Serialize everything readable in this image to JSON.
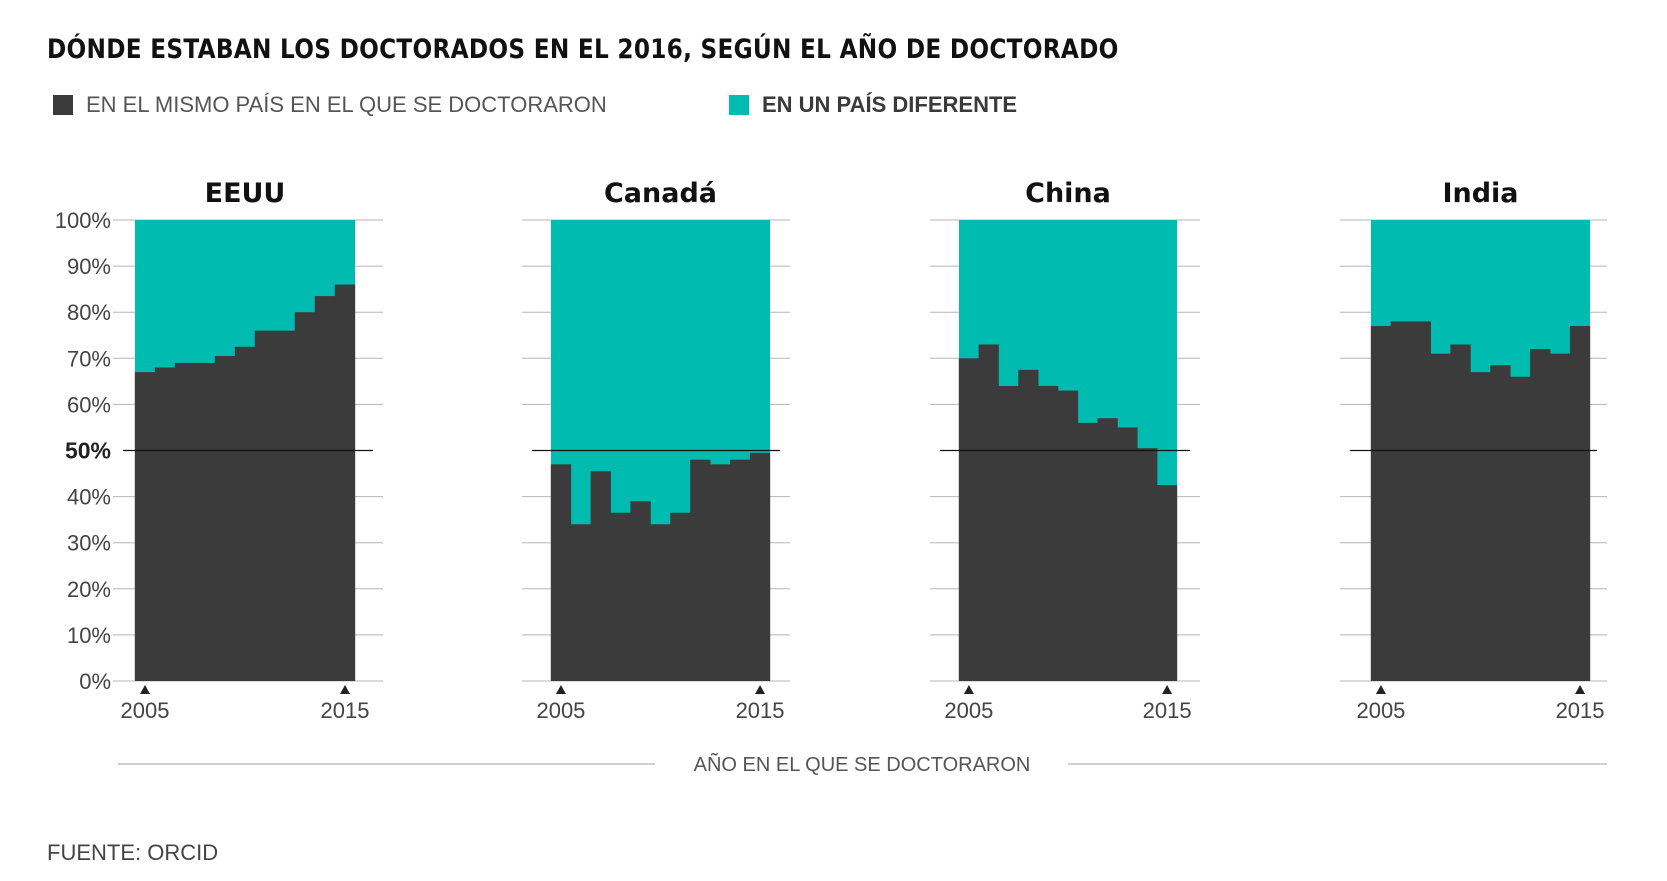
{
  "title": "DÓNDE ESTABAN LOS DOCTORADOS EN EL 2016, SEGÚN EL AÑO DE DOCTORADO",
  "legend": {
    "same": {
      "label": "EN EL MISMO PAÍS EN EL QUE SE DOCTORARON",
      "color": "#3b3b3b"
    },
    "different": {
      "label": "EN UN PAÍS DIFERENTE",
      "color": "#00bbb0"
    }
  },
  "source": "FUENTE: ORCID",
  "chart_data": {
    "type": "area",
    "layout": "small-multiples",
    "stacked": true,
    "xlabel": "AÑO EN EL QUE SE DOCTORARON",
    "xticks": [
      "2005",
      "2015"
    ],
    "x": [
      2005,
      2006,
      2007,
      2008,
      2009,
      2010,
      2011,
      2012,
      2013,
      2014,
      2015
    ],
    "ylim": [
      0,
      100
    ],
    "yticks": [
      "0%",
      "10%",
      "20%",
      "30%",
      "40%",
      "50%",
      "60%",
      "70%",
      "80%",
      "90%",
      "100%"
    ],
    "reference_line": 50,
    "grid": true,
    "panels": [
      {
        "name": "EEUU",
        "same": [
          67,
          68,
          69,
          69,
          70.5,
          72.5,
          76,
          76,
          80,
          83.5,
          86
        ]
      },
      {
        "name": "Canadá",
        "same": [
          47,
          34,
          45.5,
          36.5,
          39,
          34,
          36.5,
          48,
          47,
          48,
          49.5
        ]
      },
      {
        "name": "China",
        "same": [
          70,
          73,
          64,
          67.5,
          64,
          63,
          56,
          57,
          55,
          50.5,
          42.5
        ]
      },
      {
        "name": "India",
        "same": [
          77,
          78,
          78,
          71,
          73,
          67,
          68.5,
          66,
          72,
          71,
          77
        ]
      }
    ]
  }
}
